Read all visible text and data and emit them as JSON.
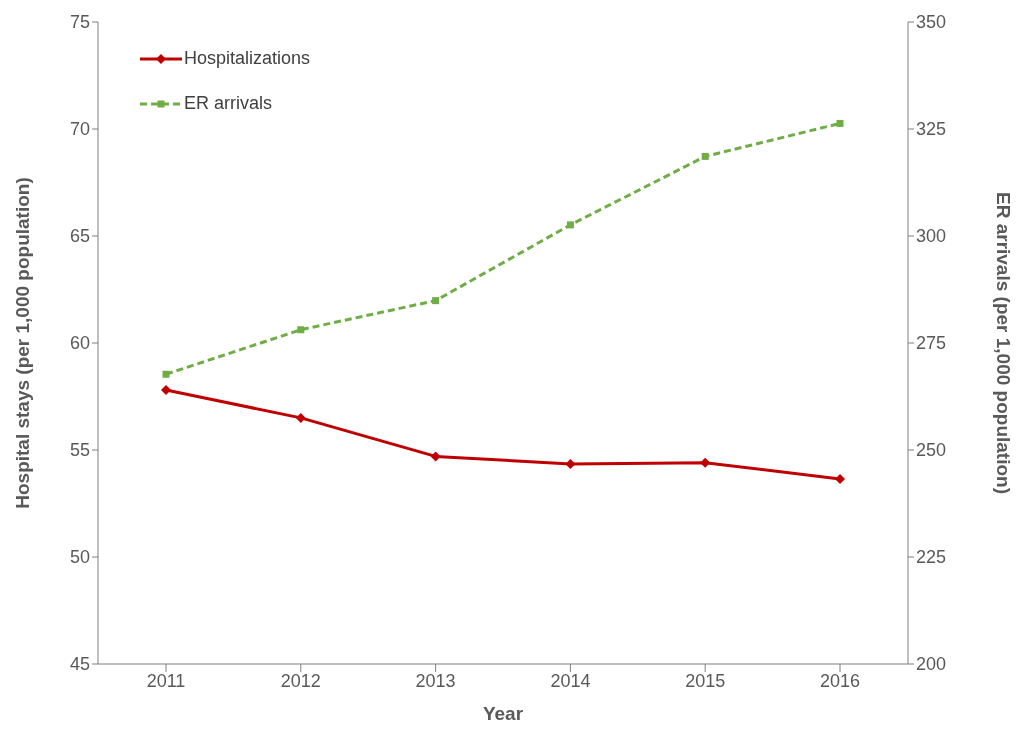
{
  "chart_data": {
    "type": "line",
    "xlabel": "Year",
    "ylabel": "Hospital stays (per 1,000 population)",
    "y2label": "ER arrivals (per 1,000 population)",
    "categories": [
      "2011",
      "2012",
      "2013",
      "2014",
      "2015",
      "2016"
    ],
    "series": [
      {
        "name": "Hospitalizations",
        "color": "#c00000",
        "values": [
          57.8,
          56.5,
          54.7,
          54.35,
          54.4,
          53.65
        ],
        "marker": "diamond",
        "line_style": "solid"
      },
      {
        "name": "ER arrivals",
        "color": "#70ad47",
        "values": [
          267.7,
          278.1,
          284.9,
          302.6,
          318.6,
          326.3
        ],
        "axis": "y2",
        "marker": "square",
        "line_style": "dashed"
      }
    ],
    "ylim": [
      45,
      75
    ],
    "yticks": [
      45,
      50,
      55,
      60,
      65,
      70,
      75
    ],
    "y2lim": [
      200,
      350
    ],
    "y2ticks": [
      200,
      225,
      250,
      275,
      300,
      325,
      350
    ],
    "legend": "top left"
  }
}
